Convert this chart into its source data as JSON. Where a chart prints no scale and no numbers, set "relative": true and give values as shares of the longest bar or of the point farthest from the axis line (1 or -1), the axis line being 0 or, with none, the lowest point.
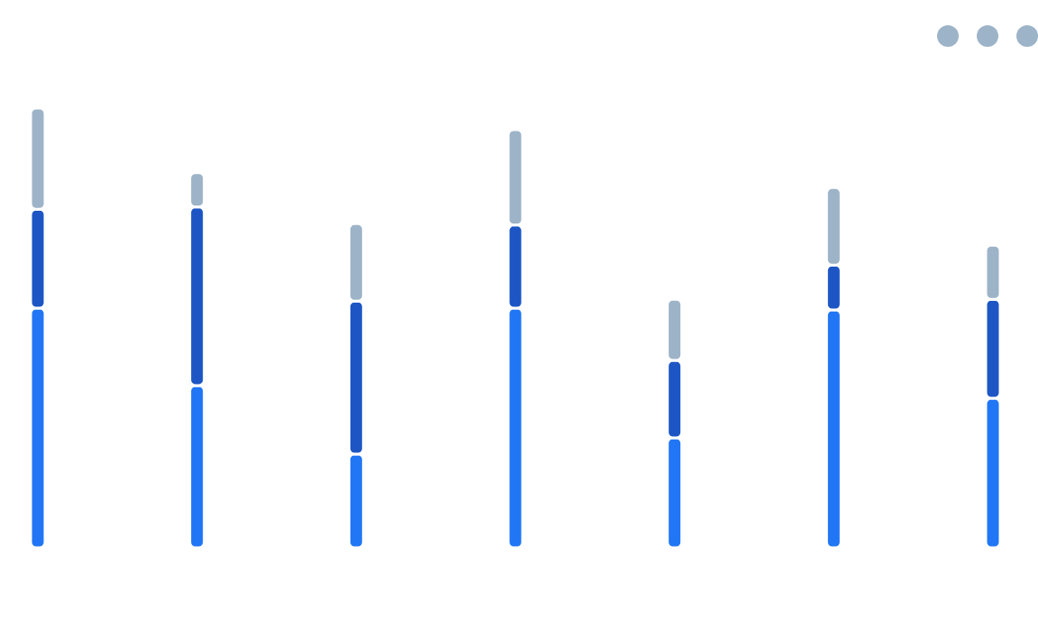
{
  "chart_data": {
    "type": "bar",
    "stacked": true,
    "relative": true,
    "categories": [
      null,
      null,
      null,
      null,
      null,
      null,
      null
    ],
    "series": [
      {
        "color": "#2176f5",
        "values": [
          0.545,
          0.369,
          0.213,
          0.545,
          0.25,
          0.541,
          0.34
        ]
      },
      {
        "color": "#1d56c4",
        "values": [
          0.225,
          0.406,
          0.348,
          0.189,
          0.176,
          0.102,
          0.225
        ]
      },
      {
        "color": "#9db3c8",
        "values": [
          0.23,
          0.078,
          0.176,
          0.217,
          0.139,
          0.176,
          0.123
        ]
      }
    ]
  }
}
